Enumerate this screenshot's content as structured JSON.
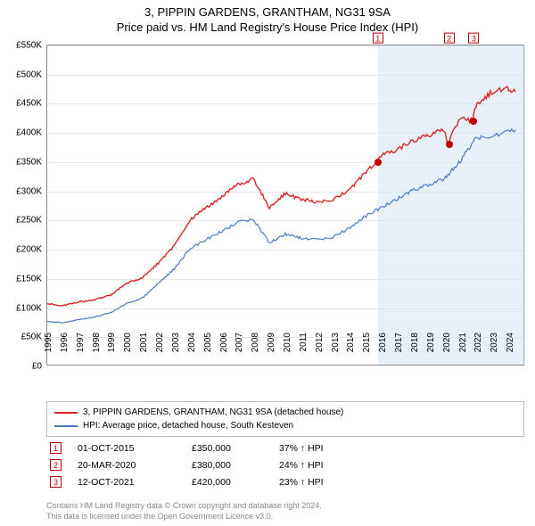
{
  "title": {
    "line1": "3, PIPPIN GARDENS, GRANTHAM, NG31 9SA",
    "line2": "Price paid vs. HM Land Registry's House Price Index (HPI)"
  },
  "chart": {
    "type": "line",
    "background_color": "#ffffff",
    "grid_color": "#e8e8e8",
    "border_color": "#888888",
    "band_color": "#cfe2f3",
    "band_opacity": 0.5,
    "x_years": [
      1995,
      1996,
      1997,
      1998,
      1999,
      2000,
      2001,
      2002,
      2003,
      2004,
      2005,
      2006,
      2007,
      2008,
      2009,
      2010,
      2011,
      2012,
      2013,
      2014,
      2015,
      2016,
      2017,
      2018,
      2019,
      2020,
      2021,
      2022,
      2023,
      2024
    ],
    "x_min_year": 1995,
    "x_max_year": 2025,
    "y_min": 0,
    "y_max": 550000,
    "y_step": 50000,
    "y_tick_labels": [
      "£0",
      "£50K",
      "£100K",
      "£150K",
      "£200K",
      "£250K",
      "£300K",
      "£350K",
      "£400K",
      "£450K",
      "£500K",
      "£550K"
    ],
    "label_fontsize": 10,
    "series": [
      {
        "label": "3, PIPPIN GARDENS, GRANTHAM, NG31 9SA (detached house)",
        "color": "#d92424",
        "line_width": 1.4,
        "values_by_year": {
          "1995": 105000,
          "1996": 102000,
          "1997": 108000,
          "1998": 112000,
          "1999": 120000,
          "2000": 140000,
          "2001": 150000,
          "2002": 175000,
          "2003": 205000,
          "2004": 250000,
          "2005": 270000,
          "2006": 290000,
          "2007": 310000,
          "2008": 320000,
          "2009": 270000,
          "2010": 295000,
          "2011": 285000,
          "2012": 280000,
          "2013": 285000,
          "2014": 300000,
          "2015": 330000,
          "2015.75": 350000,
          "2016": 360000,
          "2017": 370000,
          "2018": 385000,
          "2019": 395000,
          "2020": 405000,
          "2020.22": 380000,
          "2021": 425000,
          "2021.78": 420000,
          "2022": 445000,
          "2023": 470000,
          "2024": 475000,
          "2024.5": 470000
        }
      },
      {
        "label": "HPI: Average price, detached house, South Kesteven",
        "color": "#4879c4",
        "line_width": 1.2,
        "values_by_year": {
          "1995": 75000,
          "1996": 72000,
          "1997": 78000,
          "1998": 82000,
          "1999": 90000,
          "2000": 105000,
          "2001": 115000,
          "2002": 140000,
          "2003": 165000,
          "2004": 200000,
          "2005": 215000,
          "2006": 230000,
          "2007": 245000,
          "2008": 250000,
          "2009": 210000,
          "2010": 225000,
          "2011": 218000,
          "2012": 215000,
          "2013": 220000,
          "2014": 235000,
          "2015": 255000,
          "2016": 270000,
          "2017": 285000,
          "2018": 300000,
          "2019": 310000,
          "2020": 320000,
          "2021": 350000,
          "2022": 390000,
          "2023": 395000,
          "2024": 400000,
          "2024.5": 405000
        }
      }
    ],
    "markers": [
      {
        "num": "1",
        "year": 2015.75,
        "value": 350000
      },
      {
        "num": "2",
        "year": 2020.22,
        "value": 380000
      },
      {
        "num": "3",
        "year": 2021.78,
        "value": 420000
      }
    ],
    "band_from_year": 2015.75
  },
  "legend": {
    "items": [
      {
        "label": "3, PIPPIN GARDENS, GRANTHAM, NG31 9SA (detached house)",
        "color": "#d92424"
      },
      {
        "label": "HPI: Average price, detached house, South Kesteven",
        "color": "#4879c4"
      }
    ]
  },
  "sales": [
    {
      "num": "1",
      "date": "01-OCT-2015",
      "price": "£350,000",
      "pct": "37% ↑ HPI"
    },
    {
      "num": "2",
      "date": "20-MAR-2020",
      "price": "£380,000",
      "pct": "24% ↑ HPI"
    },
    {
      "num": "3",
      "date": "12-OCT-2021",
      "price": "£420,000",
      "pct": "23% ↑ HPI"
    }
  ],
  "footer": {
    "line1": "Contains HM Land Registry data © Crown copyright and database right 2024.",
    "line2": "This data is licensed under the Open Government Licence v3.0."
  }
}
